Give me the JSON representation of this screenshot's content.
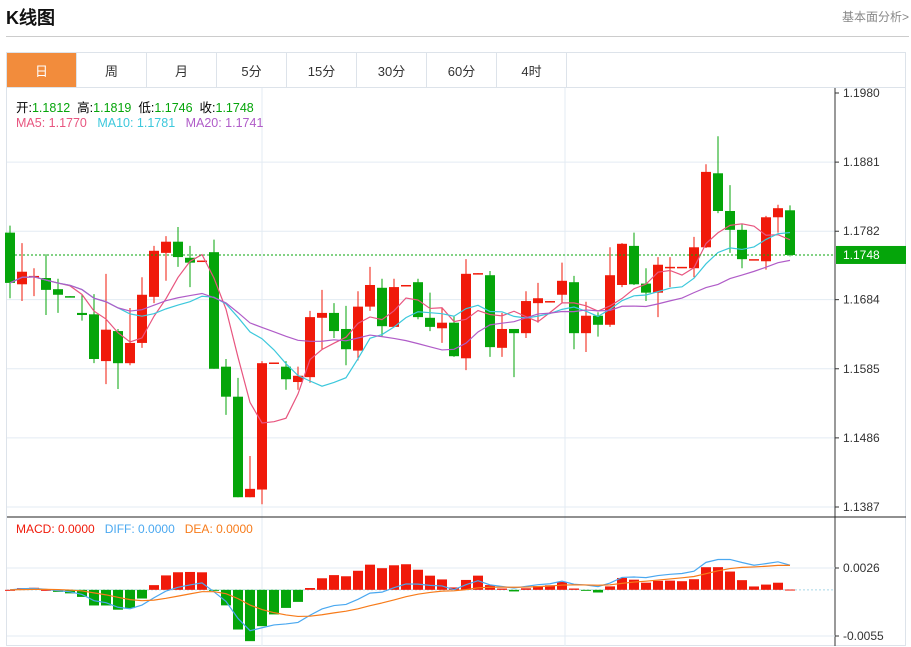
{
  "header": {
    "title": "K线图",
    "link": "基本面分析>"
  },
  "tabs": [
    {
      "label": "日",
      "active": true
    },
    {
      "label": "周"
    },
    {
      "label": "月"
    },
    {
      "label": "5分"
    },
    {
      "label": "15分"
    },
    {
      "label": "30分"
    },
    {
      "label": "60分"
    },
    {
      "label": "4时"
    }
  ],
  "ohlc_legend": {
    "open_label": "开:",
    "open": "1.1812",
    "high_label": "高:",
    "high": "1.1819",
    "low_label": "低:",
    "low": "1.1746",
    "close_label": "收:",
    "close": "1.1748"
  },
  "ma_legend": {
    "ma5": "MA5: 1.1770",
    "ma10": "MA10: 1.1781",
    "ma20": "MA20: 1.1741"
  },
  "macd_legend": {
    "macd": "MACD: 0.0000",
    "diff": "DIFF: 0.0000",
    "dea": "DEA: 0.0000"
  },
  "colors": {
    "up": "#f01a0a",
    "down": "#05a50a",
    "ma5": "#e8557f",
    "ma10": "#3cc8dc",
    "ma20": "#b05cc8",
    "diff": "#4aa8f0",
    "dea": "#f77b1a",
    "accent": "#f28c3c"
  },
  "chart_data": {
    "type": "candlestick",
    "price_axis": {
      "ticks": [
        "1.1980",
        "1.1881",
        "1.1782",
        "1.1684",
        "1.1585",
        "1.1486",
        "1.1387"
      ],
      "range": [
        1.1387,
        1.198
      ]
    },
    "current_price": "1.1748",
    "macd_axis": {
      "ticks": [
        "0.0026",
        "-0.0055"
      ],
      "range": [
        -0.0055,
        0.0026
      ]
    },
    "candles": [
      [
        1.178,
        1.179,
        1.1686,
        1.1708
      ],
      [
        1.1706,
        1.1765,
        1.1682,
        1.1724
      ],
      [
        1.1717,
        1.1729,
        1.1689,
        1.1718
      ],
      [
        1.1715,
        1.1749,
        1.1662,
        1.1698
      ],
      [
        1.1699,
        1.1714,
        1.1665,
        1.1691
      ],
      [
        1.1689,
        1.1689,
        1.1688,
        1.1688
      ],
      [
        1.1665,
        1.1692,
        1.1654,
        1.1662
      ],
      [
        1.1663,
        1.1692,
        1.1593,
        1.1599
      ],
      [
        1.1596,
        1.1721,
        1.1563,
        1.1641
      ],
      [
        1.1639,
        1.1642,
        1.1556,
        1.1593
      ],
      [
        1.1593,
        1.1672,
        1.159,
        1.1622
      ],
      [
        1.1622,
        1.1716,
        1.1615,
        1.1691
      ],
      [
        1.1688,
        1.1761,
        1.1679,
        1.1754
      ],
      [
        1.1751,
        1.1775,
        1.1711,
        1.1767
      ],
      [
        1.1767,
        1.1788,
        1.1731,
        1.1745
      ],
      [
        1.1744,
        1.1761,
        1.1702,
        1.1737
      ],
      [
        1.1739,
        1.174,
        1.1739,
        1.174
      ],
      [
        1.1752,
        1.177,
        1.1585,
        1.1585
      ],
      [
        1.1588,
        1.1599,
        1.1519,
        1.1545
      ],
      [
        1.1545,
        1.1572,
        1.1401,
        1.1401
      ],
      [
        1.1401,
        1.146,
        1.1401,
        1.1413
      ],
      [
        1.1412,
        1.1596,
        1.1391,
        1.1593
      ],
      [
        1.1593,
        1.1594,
        1.1593,
        1.1594
      ],
      [
        1.1588,
        1.1596,
        1.1555,
        1.157
      ],
      [
        1.1566,
        1.1588,
        1.1555,
        1.1575
      ],
      [
        1.1573,
        1.1668,
        1.1565,
        1.1659
      ],
      [
        1.1658,
        1.1698,
        1.1612,
        1.1665
      ],
      [
        1.1665,
        1.1679,
        1.1629,
        1.1639
      ],
      [
        1.1642,
        1.1675,
        1.159,
        1.1613
      ],
      [
        1.1611,
        1.1696,
        1.1597,
        1.1674
      ],
      [
        1.1674,
        1.1731,
        1.1668,
        1.1705
      ],
      [
        1.1701,
        1.1714,
        1.1632,
        1.1646
      ],
      [
        1.1645,
        1.1714,
        1.1645,
        1.1702
      ],
      [
        1.1704,
        1.1705,
        1.1704,
        1.1705
      ],
      [
        1.1709,
        1.1714,
        1.1656,
        1.1659
      ],
      [
        1.1658,
        1.1694,
        1.1639,
        1.1645
      ],
      [
        1.1643,
        1.1672,
        1.1622,
        1.1651
      ],
      [
        1.1651,
        1.1661,
        1.1602,
        1.1603
      ],
      [
        1.16,
        1.1742,
        1.1583,
        1.1721
      ],
      [
        1.1721,
        1.1722,
        1.1721,
        1.1722
      ],
      [
        1.1719,
        1.1725,
        1.1602,
        1.1616
      ],
      [
        1.1615,
        1.1665,
        1.1602,
        1.1642
      ],
      [
        1.1642,
        1.1642,
        1.1573,
        1.1636
      ],
      [
        1.1636,
        1.1696,
        1.1629,
        1.1682
      ],
      [
        1.1679,
        1.1708,
        1.1651,
        1.1686
      ],
      [
        1.1681,
        1.1682,
        1.1681,
        1.1682
      ],
      [
        1.1691,
        1.1737,
        1.1679,
        1.1711
      ],
      [
        1.1709,
        1.1718,
        1.1613,
        1.1636
      ],
      [
        1.1636,
        1.1681,
        1.1609,
        1.1661
      ],
      [
        1.1661,
        1.1666,
        1.1631,
        1.1648
      ],
      [
        1.1648,
        1.1759,
        1.1645,
        1.1719
      ],
      [
        1.1705,
        1.1765,
        1.1702,
        1.1764
      ],
      [
        1.1761,
        1.178,
        1.1705,
        1.1706
      ],
      [
        1.1707,
        1.1729,
        1.1682,
        1.1694
      ],
      [
        1.1694,
        1.1745,
        1.1659,
        1.1734
      ],
      [
        1.1731,
        1.1745,
        1.1702,
        1.1731
      ],
      [
        1.1731,
        1.1731,
        1.1731,
        1.1731
      ],
      [
        1.1729,
        1.1774,
        1.1716,
        1.1759
      ],
      [
        1.1759,
        1.1878,
        1.1758,
        1.1867
      ],
      [
        1.1865,
        1.1918,
        1.1808,
        1.1811
      ],
      [
        1.1811,
        1.1848,
        1.1751,
        1.1784
      ],
      [
        1.1784,
        1.1792,
        1.1729,
        1.1742
      ],
      [
        1.1742,
        1.1742,
        1.1742,
        1.1742
      ],
      [
        1.1739,
        1.1804,
        1.1727,
        1.1802
      ],
      [
        1.1802,
        1.182,
        1.178,
        1.1815
      ],
      [
        1.1812,
        1.1819,
        1.1746,
        1.1748
      ]
    ]
  }
}
